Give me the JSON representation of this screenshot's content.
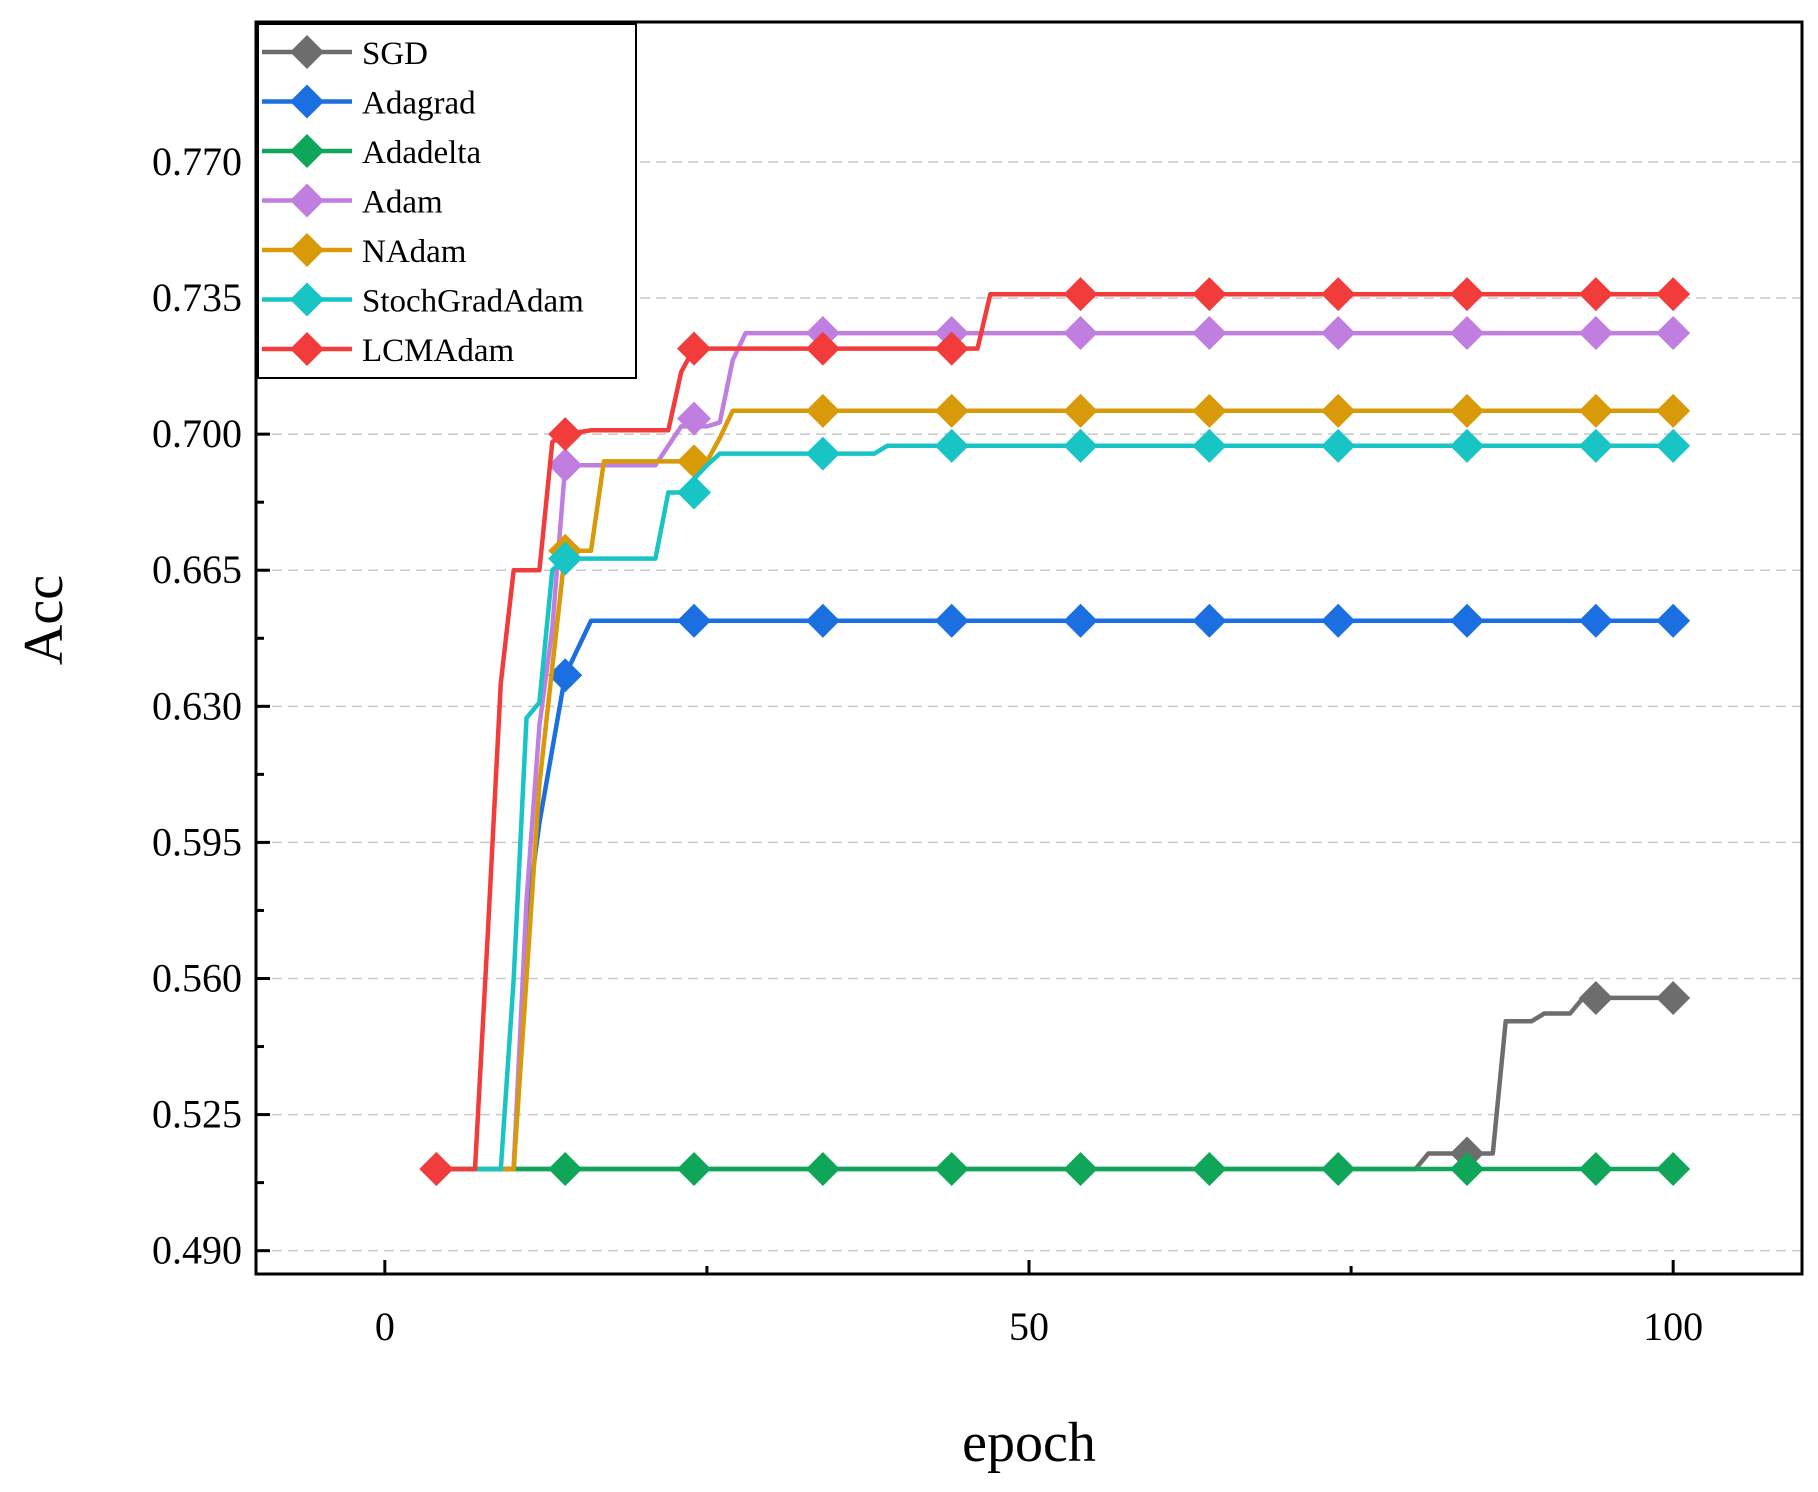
{
  "chart_data": {
    "type": "line",
    "title": "",
    "xlabel": "epoch",
    "ylabel": "Acc",
    "xlim": [
      -10,
      110
    ],
    "ylim": [
      0.484,
      0.806
    ],
    "xticks": [
      0,
      50,
      100
    ],
    "xtick_labels": [
      "0",
      "50",
      "100"
    ],
    "yticks": [
      0.49,
      0.525,
      0.56,
      0.595,
      0.63,
      0.665,
      0.7,
      0.735,
      0.77
    ],
    "ytick_labels": [
      "0.490",
      "0.525",
      "0.560",
      "0.595",
      "0.630",
      "0.665",
      "0.700",
      "0.735",
      "0.770"
    ],
    "grid": true,
    "legend_position": "top-left",
    "series": [
      {
        "name": "SGD",
        "color": "#6d6d6d",
        "x": [
          4,
          80,
          81,
          83,
          85,
          86,
          87,
          89,
          90,
          92,
          93,
          96,
          100
        ],
        "y": [
          0.511,
          0.511,
          0.515,
          0.515,
          0.515,
          0.515,
          0.549,
          0.549,
          0.551,
          0.551,
          0.555,
          0.555,
          0.555
        ],
        "markers_x": [
          4,
          84,
          94,
          100
        ],
        "markers_y": [
          0.511,
          0.515,
          0.555,
          0.555
        ]
      },
      {
        "name": "Adagrad",
        "color": "#1b6fe0",
        "x": [
          4,
          10,
          11,
          12,
          14,
          16,
          100
        ],
        "y": [
          0.511,
          0.511,
          0.575,
          0.6,
          0.638,
          0.652,
          0.652
        ],
        "markers_x": [
          14,
          24,
          34,
          44,
          54,
          64,
          74,
          84,
          94,
          100
        ],
        "markers_y": [
          0.638,
          0.652,
          0.652,
          0.652,
          0.652,
          0.652,
          0.652,
          0.652,
          0.652,
          0.652
        ]
      },
      {
        "name": "Adadelta",
        "color": "#10a65a",
        "x": [
          4,
          100
        ],
        "y": [
          0.511,
          0.511
        ],
        "markers_x": [
          14,
          24,
          34,
          44,
          54,
          64,
          74,
          84,
          94,
          100
        ],
        "markers_y": [
          0.511,
          0.511,
          0.511,
          0.511,
          0.511,
          0.511,
          0.511,
          0.511,
          0.511,
          0.511
        ]
      },
      {
        "name": "Adam",
        "color": "#c07fe0",
        "x": [
          4,
          10,
          11,
          12,
          13,
          14,
          16,
          21,
          23,
          25,
          26,
          27,
          28,
          100
        ],
        "y": [
          0.511,
          0.511,
          0.58,
          0.625,
          0.65,
          0.692,
          0.692,
          0.692,
          0.702,
          0.702,
          0.703,
          0.719,
          0.726,
          0.726
        ],
        "markers_x": [
          14,
          24,
          34,
          44,
          54,
          64,
          74,
          84,
          94,
          100
        ],
        "markers_y": [
          0.692,
          0.704,
          0.726,
          0.726,
          0.726,
          0.726,
          0.726,
          0.726,
          0.726,
          0.726
        ]
      },
      {
        "name": "NAdam",
        "color": "#d89a08",
        "x": [
          4,
          10,
          11,
          12,
          13,
          14,
          16,
          17,
          21,
          25,
          26,
          27,
          100
        ],
        "y": [
          0.511,
          0.511,
          0.56,
          0.61,
          0.64,
          0.67,
          0.67,
          0.693,
          0.693,
          0.693,
          0.699,
          0.706,
          0.706
        ],
        "markers_x": [
          14,
          24,
          34,
          44,
          54,
          64,
          74,
          84,
          94,
          100
        ],
        "markers_y": [
          0.67,
          0.693,
          0.706,
          0.706,
          0.706,
          0.706,
          0.706,
          0.706,
          0.706,
          0.706
        ]
      },
      {
        "name": "StochGradAdam",
        "color": "#18c4c4",
        "x": [
          4,
          9,
          10,
          11,
          12,
          13,
          14,
          16,
          21,
          22,
          23,
          25,
          26,
          38,
          39,
          100
        ],
        "y": [
          0.511,
          0.511,
          0.56,
          0.627,
          0.631,
          0.665,
          0.668,
          0.668,
          0.668,
          0.685,
          0.685,
          0.692,
          0.695,
          0.695,
          0.697,
          0.697
        ],
        "markers_x": [
          14,
          24,
          34,
          44,
          54,
          64,
          74,
          84,
          94,
          100
        ],
        "markers_y": [
          0.668,
          0.685,
          0.695,
          0.697,
          0.697,
          0.697,
          0.697,
          0.697,
          0.697,
          0.697
        ]
      },
      {
        "name": "LCMAdam",
        "color": "#f23c3c",
        "x": [
          4,
          7,
          8,
          9,
          10,
          12,
          13,
          14,
          16,
          22,
          23,
          24,
          46,
          47,
          100
        ],
        "y": [
          0.511,
          0.511,
          0.572,
          0.636,
          0.665,
          0.665,
          0.698,
          0.7,
          0.701,
          0.701,
          0.716,
          0.722,
          0.722,
          0.736,
          0.736
        ],
        "markers_x": [
          4,
          14,
          24,
          34,
          44,
          54,
          64,
          74,
          84,
          94,
          100
        ],
        "markers_y": [
          0.511,
          0.7,
          0.722,
          0.722,
          0.722,
          0.736,
          0.736,
          0.736,
          0.736,
          0.736,
          0.736
        ]
      }
    ]
  }
}
